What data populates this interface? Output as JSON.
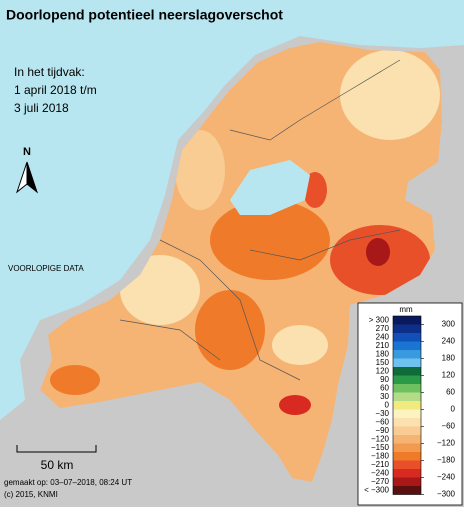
{
  "title": "Doorlopend potentieel neerslagoverschot",
  "period": [
    "In het tijdvak:",
    "1 april 2018 t/m",
    "3 juli 2018"
  ],
  "north": "N",
  "provisional": "VOORLOPIGE DATA",
  "scale": "50 km",
  "made": "gemaakt op: 03–07–2018, 08:24 UT",
  "copyright": "(c) 2015, KNMI",
  "legend": {
    "unit": "mm",
    "left_labels": [
      "> 300",
      "270",
      "240",
      "210",
      "180",
      "150",
      "120",
      "90",
      "60",
      "30",
      "0",
      "−30",
      "−60",
      "−90",
      "−120",
      "−150",
      "−180",
      "−210",
      "−240",
      "−270",
      "< −300"
    ],
    "right_labels": [
      "300",
      "240",
      "180",
      "120",
      "60",
      "0",
      "−60",
      "−120",
      "−180",
      "−240",
      "−300"
    ],
    "colors": [
      "#0a1a5c",
      "#0d2f8a",
      "#1050b8",
      "#1a75d2",
      "#3a9ae0",
      "#6ec2ee",
      "#0f6b3a",
      "#2a9a48",
      "#6fc060",
      "#b4dc86",
      "#f1ea80",
      "#fdf3c0",
      "#fbe0b0",
      "#f8cc92",
      "#f6b474",
      "#f39a50",
      "#ef7a2a",
      "#e8502a",
      "#d82a20",
      "#a81818",
      "#5a1010"
    ]
  }
}
